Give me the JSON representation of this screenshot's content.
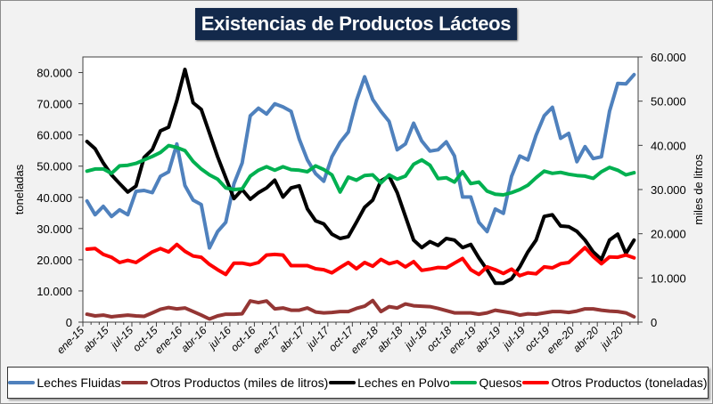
{
  "chart_data": {
    "type": "line",
    "title": "Existencias de Productos Lácteos",
    "ylabel": "toneladas",
    "y2label": "miles de litros",
    "ylim": [
      0,
      85000
    ],
    "y2lim": [
      0,
      60000
    ],
    "yticks": [
      "0",
      "10.000",
      "20.000",
      "30.000",
      "40.000",
      "50.000",
      "60.000",
      "70.000",
      "80.000"
    ],
    "y2ticks": [
      "0",
      "10.000",
      "20.000",
      "30.000",
      "40.000",
      "50.000",
      "60.000"
    ],
    "grid": false,
    "legend_position": "bottom",
    "x": [
      "ene-15",
      "feb-15",
      "mar-15",
      "abr-15",
      "may-15",
      "jun-15",
      "jul-15",
      "ago-15",
      "sep-15",
      "oct-15",
      "nov-15",
      "dic-15",
      "ene-16",
      "feb-16",
      "mar-16",
      "abr-16",
      "may-16",
      "jun-16",
      "jul-16",
      "ago-16",
      "sep-16",
      "oct-16",
      "nov-16",
      "dic-16",
      "ene-17",
      "feb-17",
      "mar-17",
      "abr-17",
      "may-17",
      "jun-17",
      "jul-17",
      "ago-17",
      "sep-17",
      "oct-17",
      "nov-17",
      "dic-17",
      "ene-18",
      "feb-18",
      "mar-18",
      "abr-18",
      "may-18",
      "jun-18",
      "jul-18",
      "ago-18",
      "sep-18",
      "oct-18",
      "nov-18",
      "dic-18",
      "ene-19",
      "feb-19",
      "mar-19",
      "abr-19",
      "may-19",
      "jun-19",
      "jul-19",
      "ago-19",
      "sep-19",
      "oct-19",
      "nov-19",
      "dic-19",
      "ene-20",
      "feb-20",
      "mar-20",
      "abr-20",
      "may-20",
      "jun-20",
      "jul-20",
      "ago-20"
    ],
    "xtick_labels": [
      "ene-15",
      "abr-15",
      "jul-15",
      "oct-15",
      "ene-16",
      "abr-16",
      "jul-16",
      "oct-16",
      "ene-17",
      "abr-17",
      "jul-17",
      "oct-17",
      "ene-18",
      "abr-18",
      "jul-18",
      "oct-18",
      "ene-19",
      "abr-19",
      "jul-19",
      "oct-19",
      "ene-20",
      "abr-20",
      "jul-20"
    ],
    "series": [
      {
        "name": "Leches Fluidas",
        "axis": "right",
        "color": "#4f81bd",
        "values": [
          27400,
          24300,
          26200,
          23900,
          25400,
          24300,
          29600,
          29800,
          29300,
          33000,
          34000,
          40300,
          30900,
          27600,
          26600,
          16800,
          20500,
          22600,
          31300,
          36000,
          46700,
          48400,
          47100,
          49400,
          48700,
          47700,
          41400,
          36700,
          33600,
          31900,
          37400,
          40700,
          43000,
          50100,
          55500,
          50400,
          47700,
          45400,
          39000,
          40300,
          45000,
          41000,
          38700,
          39000,
          40800,
          37600,
          28300,
          28300,
          22600,
          20500,
          25600,
          24600,
          33000,
          37600,
          36700,
          42300,
          46700,
          48600,
          41600,
          42700,
          36300,
          39700,
          37000,
          37400,
          47700,
          54000,
          53900,
          56000
        ]
      },
      {
        "name": "Otros Productos (miles de litros)",
        "axis": "right",
        "color": "#943634",
        "values": [
          1800,
          1400,
          1600,
          1200,
          1400,
          1600,
          1400,
          1300,
          2100,
          2900,
          3300,
          3000,
          3200,
          2400,
          1600,
          700,
          1400,
          1800,
          1800,
          1900,
          4800,
          4400,
          4800,
          3000,
          3200,
          2700,
          2700,
          3200,
          2300,
          2100,
          2200,
          2400,
          2400,
          3100,
          3600,
          4900,
          2400,
          3500,
          3200,
          4100,
          3700,
          3600,
          3500,
          3100,
          2600,
          2100,
          2100,
          2100,
          1800,
          2100,
          2700,
          2400,
          2100,
          1600,
          1900,
          1800,
          2100,
          2400,
          2400,
          2200,
          2500,
          3000,
          3000,
          2700,
          2500,
          2400,
          2100,
          1200
        ]
      },
      {
        "name": "Leches en Polvo",
        "axis": "left",
        "color": "#000000",
        "values": [
          57900,
          55600,
          51000,
          47200,
          44400,
          41700,
          43600,
          52800,
          55300,
          61300,
          62500,
          71000,
          81000,
          70300,
          68200,
          60600,
          53000,
          46300,
          39600,
          42500,
          39400,
          41500,
          43000,
          45500,
          40100,
          43000,
          43700,
          36300,
          32500,
          31500,
          28200,
          26800,
          27400,
          32000,
          36800,
          39100,
          45300,
          46800,
          41500,
          33900,
          26300,
          23900,
          25800,
          24600,
          26800,
          26300,
          23900,
          24900,
          20600,
          16800,
          12500,
          12500,
          13900,
          17700,
          22500,
          26300,
          33900,
          34400,
          30800,
          30600,
          29100,
          26300,
          22500,
          20100,
          26300,
          28200,
          22000,
          26300
        ]
      },
      {
        "name": "Quesos",
        "axis": "left",
        "color": "#00b050",
        "values": [
          48400,
          49100,
          49100,
          47700,
          50100,
          50300,
          50900,
          52000,
          53100,
          54400,
          56600,
          56000,
          55000,
          51500,
          49100,
          47200,
          45800,
          43000,
          42500,
          42700,
          46800,
          48700,
          49800,
          48700,
          49800,
          48900,
          48700,
          48200,
          50100,
          48900,
          47200,
          41700,
          46500,
          45500,
          47000,
          47200,
          44600,
          47200,
          45800,
          46800,
          50600,
          52000,
          50300,
          46000,
          46300,
          44900,
          48200,
          44400,
          44900,
          42000,
          41000,
          40800,
          41500,
          42500,
          43900,
          46300,
          48400,
          47700,
          48000,
          47400,
          47000,
          46800,
          46100,
          48200,
          49600,
          48700,
          47200,
          47900
        ]
      },
      {
        "name": "Otros Productos (toneladas)",
        "axis": "left",
        "color": "#ff0000",
        "values": [
          23400,
          23600,
          21700,
          20800,
          19100,
          19800,
          19100,
          20800,
          22500,
          23600,
          22500,
          24900,
          22700,
          21200,
          20800,
          18500,
          16800,
          15300,
          18900,
          18900,
          18400,
          19100,
          21500,
          21700,
          21500,
          18100,
          18100,
          18100,
          17100,
          16800,
          15800,
          17500,
          19100,
          17100,
          19100,
          17900,
          20100,
          18700,
          19400,
          17700,
          19400,
          16600,
          17000,
          17500,
          17400,
          18900,
          20400,
          16800,
          15300,
          17700,
          16800,
          15600,
          17000,
          14900,
          15800,
          15500,
          17700,
          17400,
          18700,
          19100,
          21500,
          23900,
          21000,
          18700,
          20900,
          20800,
          21500,
          20600
        ]
      }
    ]
  }
}
